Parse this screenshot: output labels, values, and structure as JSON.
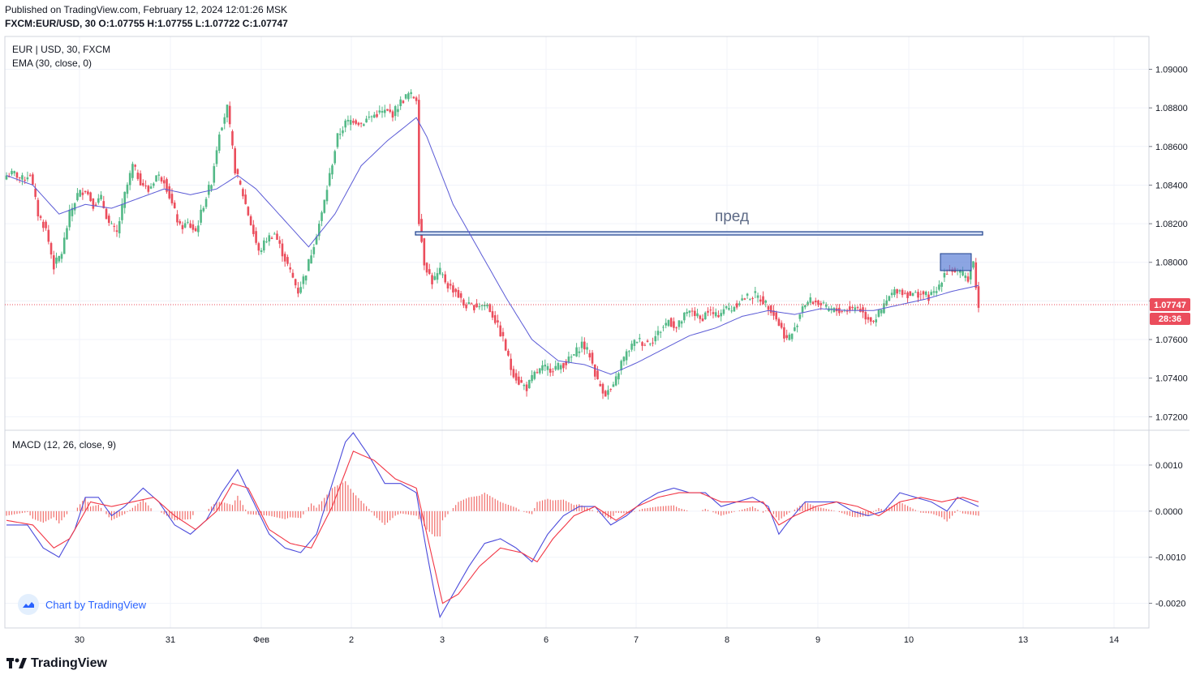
{
  "header": {
    "published": "Published on TradingView.com, February 12, 2024 12:01:26 MSK",
    "symbol": "FXCM:EUR/USD, 30",
    "ohlc": "O:1.07755 H:1.07755 L:1.07722 C:1.07747"
  },
  "legend": {
    "main_title": "EUR | USD, 30, FXCM",
    "ema_label": "EMA (30, close, 0)",
    "macd_label": "MACD (12, 26, close, 9)"
  },
  "annotation": {
    "text": "пред"
  },
  "price_axis": {
    "ticks": [
      "1.09000",
      "1.08800",
      "1.08600",
      "1.08400",
      "1.08200",
      "1.08000",
      "1.07800",
      "1.07600",
      "1.07400",
      "1.07200"
    ],
    "tick_values": [
      1.09,
      1.088,
      1.086,
      1.084,
      1.082,
      1.08,
      1.078,
      1.076,
      1.074,
      1.072
    ],
    "current_price": "1.07747",
    "countdown": "28:36"
  },
  "macd_axis": {
    "ticks": [
      "0.0010",
      "0.0000",
      "-0.0010",
      "-0.0020"
    ],
    "tick_values": [
      0.001,
      0.0,
      -0.001,
      -0.002
    ]
  },
  "time_axis": {
    "labels": [
      "30",
      "31",
      "Фев",
      "2",
      "3",
      "6",
      "7",
      "8",
      "9",
      "10",
      "13",
      "14"
    ]
  },
  "branding": {
    "chart_by": "Chart by TradingView",
    "footer": "TradingView"
  },
  "colors": {
    "up": "#26a69a",
    "up_candle": "#53b987",
    "down": "#eb4d5c",
    "ema": "#5b5bd6",
    "macd": "#4b4bdb",
    "signal": "#f23645",
    "hist": "#ef5350",
    "grid": "#f0f3fa",
    "level": "#1c3f8c",
    "box": "#5b7fd6"
  },
  "chart_data": {
    "type": "candlestick",
    "price_range": [
      1.0713,
      1.0917
    ],
    "macd_range": [
      -0.0025,
      0.00172
    ],
    "price_anchors": [
      [
        0,
        1.0845
      ],
      [
        3,
        1.0846
      ],
      [
        6,
        1.0843
      ],
      [
        9,
        1.0846
      ],
      [
        12,
        1.0825
      ],
      [
        15,
        1.0817
      ],
      [
        18,
        1.0798
      ],
      [
        21,
        1.0805
      ],
      [
        24,
        1.0825
      ],
      [
        27,
        1.0835
      ],
      [
        30,
        1.0838
      ],
      [
        33,
        1.083
      ],
      [
        36,
        1.0833
      ],
      [
        39,
        1.082
      ],
      [
        42,
        1.0815
      ],
      [
        45,
        1.0835
      ],
      [
        48,
        1.085
      ],
      [
        51,
        1.0842
      ],
      [
        54,
        1.0837
      ],
      [
        57,
        1.0845
      ],
      [
        60,
        1.0843
      ],
      [
        63,
        1.083
      ],
      [
        66,
        1.0818
      ],
      [
        69,
        1.082
      ],
      [
        72,
        1.0816
      ],
      [
        75,
        1.083
      ],
      [
        78,
        1.0842
      ],
      [
        81,
        1.0868
      ],
      [
        84,
        1.088
      ],
      [
        87,
        1.0848
      ],
      [
        90,
        1.0835
      ],
      [
        93,
        1.082
      ],
      [
        96,
        1.0805
      ],
      [
        99,
        1.0812
      ],
      [
        102,
        1.0815
      ],
      [
        105,
        1.0805
      ],
      [
        108,
        1.0795
      ],
      [
        111,
        1.0785
      ],
      [
        114,
        1.0795
      ],
      [
        117,
        1.081
      ],
      [
        120,
        1.0825
      ],
      [
        123,
        1.0845
      ],
      [
        126,
        1.0865
      ],
      [
        129,
        1.0872
      ],
      [
        132,
        1.0874
      ],
      [
        135,
        1.0872
      ],
      [
        138,
        1.0875
      ],
      [
        141,
        1.0877
      ],
      [
        144,
        1.0878
      ],
      [
        147,
        1.0877
      ],
      [
        150,
        1.0883
      ],
      [
        153,
        1.0887
      ],
      [
        156,
        1.0885
      ],
      [
        157,
        1.0822
      ],
      [
        159,
        1.08
      ],
      [
        162,
        1.079
      ],
      [
        165,
        1.0795
      ],
      [
        168,
        1.0788
      ],
      [
        171,
        1.0785
      ],
      [
        174,
        1.0778
      ],
      [
        177,
        1.0777
      ],
      [
        180,
        1.0778
      ],
      [
        183,
        1.0778
      ],
      [
        186,
        1.077
      ],
      [
        189,
        1.076
      ],
      [
        192,
        1.0745
      ],
      [
        195,
        1.0738
      ],
      [
        198,
        1.0735
      ],
      [
        201,
        1.0742
      ],
      [
        204,
        1.0745
      ],
      [
        207,
        1.0745
      ],
      [
        210,
        1.0746
      ],
      [
        213,
        1.0748
      ],
      [
        216,
        1.0752
      ],
      [
        219,
        1.0758
      ],
      [
        222,
        1.0752
      ],
      [
        225,
        1.0738
      ],
      [
        228,
        1.0732
      ],
      [
        231,
        1.0735
      ],
      [
        234,
        1.0748
      ],
      [
        237,
        1.0755
      ],
      [
        240,
        1.076
      ],
      [
        243,
        1.0758
      ],
      [
        246,
        1.076
      ],
      [
        249,
        1.0765
      ],
      [
        252,
        1.077
      ],
      [
        255,
        1.0766
      ],
      [
        258,
        1.0772
      ],
      [
        261,
        1.0775
      ],
      [
        264,
        1.077
      ],
      [
        267,
        1.0775
      ],
      [
        270,
        1.0772
      ],
      [
        273,
        1.0776
      ],
      [
        276,
        1.0776
      ],
      [
        279,
        1.078
      ],
      [
        282,
        1.0782
      ],
      [
        285,
        1.0783
      ],
      [
        288,
        1.078
      ],
      [
        291,
        1.0776
      ],
      [
        294,
        1.0768
      ],
      [
        297,
        1.076
      ],
      [
        300,
        1.0765
      ],
      [
        303,
        1.0778
      ],
      [
        306,
        1.078
      ],
      [
        309,
        1.0779
      ],
      [
        312,
        1.0776
      ],
      [
        315,
        1.0775
      ],
      [
        318,
        1.0775
      ],
      [
        321,
        1.0776
      ],
      [
        324,
        1.0777
      ],
      [
        327,
        1.0772
      ],
      [
        330,
        1.077
      ],
      [
        333,
        1.0775
      ],
      [
        336,
        1.0782
      ],
      [
        339,
        1.0786
      ],
      [
        342,
        1.0784
      ],
      [
        345,
        1.0783
      ],
      [
        348,
        1.0784
      ],
      [
        351,
        1.0782
      ],
      [
        354,
        1.0785
      ],
      [
        357,
        1.0795
      ],
      [
        360,
        1.0796
      ],
      [
        363,
        1.0794
      ],
      [
        366,
        1.0792
      ],
      [
        368,
        1.08
      ],
      [
        370,
        1.0776
      ]
    ],
    "ema_anchors": [
      [
        0,
        1.0845
      ],
      [
        10,
        1.084
      ],
      [
        20,
        1.0825
      ],
      [
        30,
        1.083
      ],
      [
        40,
        1.0828
      ],
      [
        50,
        1.0833
      ],
      [
        60,
        1.0838
      ],
      [
        70,
        1.0835
      ],
      [
        80,
        1.0838
      ],
      [
        88,
        1.0845
      ],
      [
        95,
        1.0838
      ],
      [
        105,
        1.0823
      ],
      [
        115,
        1.0808
      ],
      [
        125,
        1.0825
      ],
      [
        135,
        1.085
      ],
      [
        145,
        1.0863
      ],
      [
        156,
        1.0875
      ],
      [
        160,
        1.0865
      ],
      [
        170,
        1.083
      ],
      [
        180,
        1.0806
      ],
      [
        190,
        1.0782
      ],
      [
        200,
        1.076
      ],
      [
        210,
        1.0749
      ],
      [
        220,
        1.0747
      ],
      [
        230,
        1.0742
      ],
      [
        240,
        1.0748
      ],
      [
        250,
        1.0755
      ],
      [
        260,
        1.0762
      ],
      [
        270,
        1.0766
      ],
      [
        280,
        1.0772
      ],
      [
        290,
        1.0775
      ],
      [
        300,
        1.0773
      ],
      [
        310,
        1.0776
      ],
      [
        320,
        1.0775
      ],
      [
        330,
        1.0775
      ],
      [
        340,
        1.0778
      ],
      [
        350,
        1.0781
      ],
      [
        360,
        1.0785
      ],
      [
        370,
        1.0788
      ]
    ],
    "macd_anchors": [
      [
        0,
        -0.0003
      ],
      [
        8,
        -0.0003
      ],
      [
        14,
        -0.0008
      ],
      [
        20,
        -0.001
      ],
      [
        26,
        -0.0004
      ],
      [
        30,
        0.0003
      ],
      [
        35,
        0.0003
      ],
      [
        40,
        -0.0001
      ],
      [
        45,
        0.0001
      ],
      [
        52,
        0.0005
      ],
      [
        58,
        0.0002
      ],
      [
        64,
        -0.0003
      ],
      [
        70,
        -0.0005
      ],
      [
        76,
        -0.0002
      ],
      [
        82,
        0.0004
      ],
      [
        88,
        0.0009
      ],
      [
        94,
        0.0002
      ],
      [
        100,
        -0.0005
      ],
      [
        106,
        -0.0008
      ],
      [
        112,
        -0.0009
      ],
      [
        118,
        -0.0005
      ],
      [
        124,
        0.0006
      ],
      [
        129,
        0.0015
      ],
      [
        132,
        0.0017
      ],
      [
        138,
        0.0012
      ],
      [
        144,
        0.0006
      ],
      [
        150,
        0.0006
      ],
      [
        156,
        0.0004
      ],
      [
        160,
        -0.0009
      ],
      [
        163,
        -0.0018
      ],
      [
        165,
        -0.0023
      ],
      [
        170,
        -0.0018
      ],
      [
        176,
        -0.0012
      ],
      [
        182,
        -0.0007
      ],
      [
        188,
        -0.0006
      ],
      [
        194,
        -0.0008
      ],
      [
        200,
        -0.0011
      ],
      [
        206,
        -0.0005
      ],
      [
        212,
        -0.0001
      ],
      [
        218,
        0.0001
      ],
      [
        224,
        0.0001
      ],
      [
        230,
        -0.0003
      ],
      [
        236,
        -0.0001
      ],
      [
        242,
        0.0002
      ],
      [
        248,
        0.0004
      ],
      [
        254,
        0.0005
      ],
      [
        260,
        0.0004
      ],
      [
        266,
        0.0004
      ],
      [
        272,
        0.0001
      ],
      [
        278,
        0.0002
      ],
      [
        284,
        0.0003
      ],
      [
        290,
        0.0001
      ],
      [
        294,
        -0.0005
      ],
      [
        298,
        -0.0002
      ],
      [
        304,
        0.0002
      ],
      [
        310,
        0.0002
      ],
      [
        316,
        0.0002
      ],
      [
        322,
        0.0
      ],
      [
        328,
        -0.0001
      ],
      [
        334,
        0.0
      ],
      [
        340,
        0.0004
      ],
      [
        346,
        0.0003
      ],
      [
        352,
        0.0002
      ],
      [
        358,
        0.0
      ],
      [
        362,
        0.0003
      ],
      [
        366,
        0.0002
      ],
      [
        370,
        0.0001
      ]
    ],
    "signal_anchors": [
      [
        0,
        -0.0002
      ],
      [
        10,
        -0.0003
      ],
      [
        18,
        -0.0008
      ],
      [
        24,
        -0.0006
      ],
      [
        32,
        0.0002
      ],
      [
        40,
        0.0001
      ],
      [
        48,
        0.0002
      ],
      [
        56,
        0.0003
      ],
      [
        64,
        -0.0001
      ],
      [
        72,
        -0.0004
      ],
      [
        80,
        0.0
      ],
      [
        86,
        0.0006
      ],
      [
        92,
        0.0005
      ],
      [
        100,
        -0.0004
      ],
      [
        108,
        -0.0007
      ],
      [
        116,
        -0.0008
      ],
      [
        124,
        0.0001
      ],
      [
        132,
        0.0013
      ],
      [
        140,
        0.0011
      ],
      [
        148,
        0.0007
      ],
      [
        156,
        0.0005
      ],
      [
        162,
        -0.001
      ],
      [
        166,
        -0.002
      ],
      [
        172,
        -0.0018
      ],
      [
        180,
        -0.0012
      ],
      [
        188,
        -0.0008
      ],
      [
        196,
        -0.0009
      ],
      [
        202,
        -0.0011
      ],
      [
        208,
        -0.0006
      ],
      [
        216,
        -0.0001
      ],
      [
        224,
        0.0001
      ],
      [
        232,
        -0.0002
      ],
      [
        240,
        0.0001
      ],
      [
        248,
        0.0003
      ],
      [
        256,
        0.0004
      ],
      [
        264,
        0.0004
      ],
      [
        272,
        0.0002
      ],
      [
        280,
        0.0002
      ],
      [
        288,
        0.0002
      ],
      [
        294,
        -0.0003
      ],
      [
        300,
        -0.0001
      ],
      [
        308,
        0.0001
      ],
      [
        316,
        0.0002
      ],
      [
        324,
        0.0001
      ],
      [
        332,
        -0.0001
      ],
      [
        340,
        0.0002
      ],
      [
        348,
        0.0003
      ],
      [
        356,
        0.0002
      ],
      [
        364,
        0.0003
      ],
      [
        370,
        0.0002
      ]
    ]
  }
}
